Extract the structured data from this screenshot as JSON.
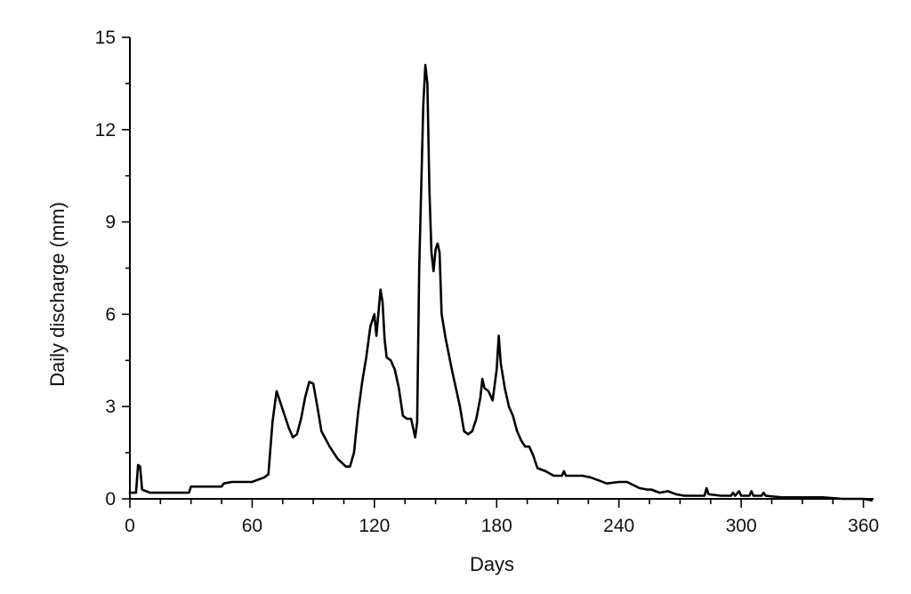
{
  "chart_data": {
    "type": "line",
    "title": "",
    "xlabel": "Days",
    "ylabel": "Daily discharge (mm)",
    "xlim": [
      0,
      365
    ],
    "ylim": [
      0,
      15
    ],
    "xticks": [
      0,
      60,
      120,
      180,
      240,
      300,
      360
    ],
    "yticks": [
      0,
      3,
      6,
      9,
      12,
      15
    ],
    "grid": false,
    "legend": "none",
    "series": [
      {
        "color": "#000000",
        "points": [
          [
            0,
            0.2
          ],
          [
            3,
            0.2
          ],
          [
            4,
            1.1
          ],
          [
            5,
            1.05
          ],
          [
            6,
            0.3
          ],
          [
            8,
            0.25
          ],
          [
            10,
            0.2
          ],
          [
            20,
            0.2
          ],
          [
            29,
            0.2
          ],
          [
            30,
            0.4
          ],
          [
            45,
            0.4
          ],
          [
            46,
            0.5
          ],
          [
            50,
            0.55
          ],
          [
            60,
            0.55
          ],
          [
            62,
            0.6
          ],
          [
            66,
            0.7
          ],
          [
            68,
            0.8
          ],
          [
            70,
            2.5
          ],
          [
            72,
            3.5
          ],
          [
            74,
            3.1
          ],
          [
            76,
            2.7
          ],
          [
            78,
            2.3
          ],
          [
            80,
            2.0
          ],
          [
            82,
            2.1
          ],
          [
            84,
            2.6
          ],
          [
            86,
            3.3
          ],
          [
            88,
            3.8
          ],
          [
            90,
            3.75
          ],
          [
            92,
            3.0
          ],
          [
            94,
            2.2
          ],
          [
            98,
            1.7
          ],
          [
            102,
            1.3
          ],
          [
            106,
            1.05
          ],
          [
            108,
            1.05
          ],
          [
            110,
            1.5
          ],
          [
            112,
            2.8
          ],
          [
            114,
            3.8
          ],
          [
            116,
            4.6
          ],
          [
            118,
            5.6
          ],
          [
            120,
            6.0
          ],
          [
            121,
            5.3
          ],
          [
            123,
            6.8
          ],
          [
            124,
            6.4
          ],
          [
            125,
            5.2
          ],
          [
            126,
            4.6
          ],
          [
            128,
            4.5
          ],
          [
            130,
            4.2
          ],
          [
            132,
            3.6
          ],
          [
            134,
            2.7
          ],
          [
            136,
            2.6
          ],
          [
            138,
            2.6
          ],
          [
            140,
            2.0
          ],
          [
            141,
            2.5
          ],
          [
            142,
            7.5
          ],
          [
            144,
            12.8
          ],
          [
            145,
            14.1
          ],
          [
            146,
            13.5
          ],
          [
            147,
            10.0
          ],
          [
            148,
            8.0
          ],
          [
            149,
            7.4
          ],
          [
            150,
            8.1
          ],
          [
            151,
            8.3
          ],
          [
            152,
            8.0
          ],
          [
            153,
            6.0
          ],
          [
            155,
            5.2
          ],
          [
            158,
            4.2
          ],
          [
            162,
            3.0
          ],
          [
            164,
            2.2
          ],
          [
            166,
            2.1
          ],
          [
            168,
            2.2
          ],
          [
            170,
            2.6
          ],
          [
            172,
            3.3
          ],
          [
            173,
            3.9
          ],
          [
            174,
            3.6
          ],
          [
            176,
            3.5
          ],
          [
            178,
            3.2
          ],
          [
            180,
            4.2
          ],
          [
            181,
            5.3
          ],
          [
            182,
            4.4
          ],
          [
            184,
            3.6
          ],
          [
            186,
            3.0
          ],
          [
            188,
            2.7
          ],
          [
            190,
            2.2
          ],
          [
            192,
            1.9
          ],
          [
            194,
            1.7
          ],
          [
            196,
            1.7
          ],
          [
            198,
            1.4
          ],
          [
            200,
            1.0
          ],
          [
            204,
            0.9
          ],
          [
            208,
            0.75
          ],
          [
            212,
            0.75
          ],
          [
            213,
            0.9
          ],
          [
            214,
            0.75
          ],
          [
            222,
            0.75
          ],
          [
            226,
            0.7
          ],
          [
            230,
            0.6
          ],
          [
            234,
            0.5
          ],
          [
            240,
            0.55
          ],
          [
            244,
            0.55
          ],
          [
            250,
            0.35
          ],
          [
            254,
            0.3
          ],
          [
            256,
            0.3
          ],
          [
            260,
            0.2
          ],
          [
            264,
            0.25
          ],
          [
            268,
            0.15
          ],
          [
            272,
            0.1
          ],
          [
            280,
            0.1
          ],
          [
            282,
            0.1
          ],
          [
            283,
            0.35
          ],
          [
            284,
            0.15
          ],
          [
            290,
            0.1
          ],
          [
            295,
            0.1
          ],
          [
            296,
            0.2
          ],
          [
            297,
            0.1
          ],
          [
            299,
            0.25
          ],
          [
            300,
            0.1
          ],
          [
            304,
            0.1
          ],
          [
            305,
            0.25
          ],
          [
            306,
            0.1
          ],
          [
            310,
            0.1
          ],
          [
            311,
            0.2
          ],
          [
            312,
            0.1
          ],
          [
            320,
            0.05
          ],
          [
            330,
            0.05
          ],
          [
            340,
            0.05
          ],
          [
            350,
            0.0
          ],
          [
            360,
            0.0
          ],
          [
            364,
            -0.05
          ]
        ]
      }
    ]
  }
}
